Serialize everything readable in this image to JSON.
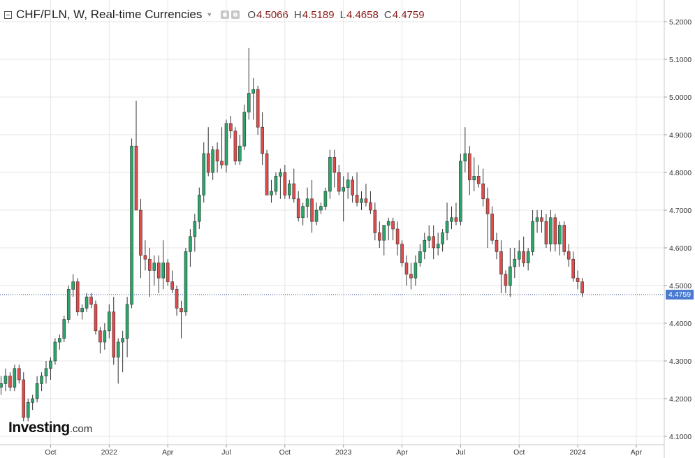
{
  "header": {
    "title": "CHF/PLN, W, Real-time Currencies",
    "ohlc": [
      {
        "key": "O",
        "value": "4.5066"
      },
      {
        "key": "H",
        "value": "4.5189"
      },
      {
        "key": "L",
        "value": "4.4658"
      },
      {
        "key": "C",
        "value": "4.4759"
      }
    ]
  },
  "logo": {
    "brand": "Investing",
    "suffix": ".com"
  },
  "last_price_label": "4.4759",
  "colors": {
    "up": "#2aa66a",
    "down": "#e04b4b",
    "grid": "#e6e6e6",
    "price_line": "#2c4a8c",
    "price_tag": "#4a7bd0"
  },
  "chart_data": {
    "type": "candlestick",
    "title": "CHF/PLN, W, Real-time Currencies",
    "interval": "W",
    "y_ticks": [
      "4.1000",
      "4.2000",
      "4.3000",
      "4.4000",
      "4.5000",
      "4.6000",
      "4.7000",
      "4.8000",
      "4.9000",
      "5.0000",
      "5.1000",
      "5.2000"
    ],
    "ylim": [
      4.08,
      5.24
    ],
    "x_ticks": [
      {
        "label": "Oct",
        "index": 11
      },
      {
        "label": "2022",
        "index": 24
      },
      {
        "label": "Apr",
        "index": 37
      },
      {
        "label": "Jul",
        "index": 50
      },
      {
        "label": "Oct",
        "index": 63
      },
      {
        "label": "2023",
        "index": 76
      },
      {
        "label": "Apr",
        "index": 89
      },
      {
        "label": "Jul",
        "index": 102
      },
      {
        "label": "Oct",
        "index": 115
      },
      {
        "label": "2024",
        "index": 128
      },
      {
        "label": "Apr",
        "index": 141
      }
    ],
    "last_price": 4.4759,
    "candles": [
      [
        4.23,
        4.26,
        4.21,
        4.24
      ],
      [
        4.24,
        4.28,
        4.22,
        4.26
      ],
      [
        4.26,
        4.27,
        4.22,
        4.23
      ],
      [
        4.23,
        4.29,
        4.22,
        4.28
      ],
      [
        4.28,
        4.29,
        4.24,
        4.25
      ],
      [
        4.25,
        4.27,
        4.14,
        4.15
      ],
      [
        4.15,
        4.2,
        4.14,
        4.19
      ],
      [
        4.19,
        4.21,
        4.17,
        4.2
      ],
      [
        4.2,
        4.26,
        4.19,
        4.24
      ],
      [
        4.24,
        4.27,
        4.22,
        4.26
      ],
      [
        4.26,
        4.3,
        4.24,
        4.28
      ],
      [
        4.28,
        4.31,
        4.25,
        4.3
      ],
      [
        4.3,
        4.36,
        4.29,
        4.35
      ],
      [
        4.35,
        4.37,
        4.33,
        4.36
      ],
      [
        4.36,
        4.42,
        4.35,
        4.41
      ],
      [
        4.41,
        4.5,
        4.4,
        4.49
      ],
      [
        4.49,
        4.53,
        4.47,
        4.51
      ],
      [
        4.51,
        4.52,
        4.42,
        4.43
      ],
      [
        4.43,
        4.45,
        4.41,
        4.44
      ],
      [
        4.44,
        4.48,
        4.43,
        4.47
      ],
      [
        4.47,
        4.48,
        4.44,
        4.45
      ],
      [
        4.45,
        4.46,
        4.37,
        4.38
      ],
      [
        4.38,
        4.39,
        4.32,
        4.35
      ],
      [
        4.35,
        4.4,
        4.33,
        4.38
      ],
      [
        4.38,
        4.45,
        4.36,
        4.43
      ],
      [
        4.43,
        4.47,
        4.29,
        4.31
      ],
      [
        4.31,
        4.36,
        4.24,
        4.35
      ],
      [
        4.35,
        4.38,
        4.27,
        4.36
      ],
      [
        4.36,
        4.47,
        4.31,
        4.45
      ],
      [
        4.45,
        4.89,
        4.44,
        4.87
      ],
      [
        4.87,
        4.99,
        4.71,
        4.7
      ],
      [
        4.7,
        4.73,
        4.52,
        4.58
      ],
      [
        4.58,
        4.62,
        4.54,
        4.57
      ],
      [
        4.57,
        4.6,
        4.47,
        4.54
      ],
      [
        4.54,
        4.58,
        4.5,
        4.56
      ],
      [
        4.56,
        4.58,
        4.48,
        4.52
      ],
      [
        4.52,
        4.62,
        4.49,
        4.56
      ],
      [
        4.56,
        4.57,
        4.5,
        4.51
      ],
      [
        4.51,
        4.54,
        4.48,
        4.49
      ],
      [
        4.49,
        4.5,
        4.42,
        4.44
      ],
      [
        4.44,
        4.46,
        4.36,
        4.43
      ],
      [
        4.43,
        4.6,
        4.42,
        4.59
      ],
      [
        4.59,
        4.65,
        4.55,
        4.63
      ],
      [
        4.63,
        4.69,
        4.59,
        4.67
      ],
      [
        4.67,
        4.76,
        4.65,
        4.74
      ],
      [
        4.74,
        4.88,
        4.72,
        4.85
      ],
      [
        4.85,
        4.92,
        4.79,
        4.8
      ],
      [
        4.8,
        4.87,
        4.78,
        4.86
      ],
      [
        4.86,
        4.88,
        4.8,
        4.83
      ],
      [
        4.83,
        4.92,
        4.81,
        4.82
      ],
      [
        4.82,
        4.94,
        4.8,
        4.93
      ],
      [
        4.93,
        4.95,
        4.89,
        4.91
      ],
      [
        4.91,
        4.92,
        4.82,
        4.83
      ],
      [
        4.83,
        4.9,
        4.82,
        4.87
      ],
      [
        4.87,
        4.98,
        4.86,
        4.96
      ],
      [
        4.96,
        5.13,
        4.94,
        5.01
      ],
      [
        5.01,
        5.05,
        4.94,
        5.02
      ],
      [
        5.02,
        5.03,
        4.9,
        4.92
      ],
      [
        4.92,
        4.96,
        4.82,
        4.85
      ],
      [
        4.85,
        4.86,
        4.75,
        4.74
      ],
      [
        4.74,
        4.78,
        4.72,
        4.75
      ],
      [
        4.75,
        4.8,
        4.74,
        4.79
      ],
      [
        4.79,
        4.81,
        4.73,
        4.8
      ],
      [
        4.8,
        4.82,
        4.73,
        4.74
      ],
      [
        4.74,
        4.78,
        4.73,
        4.77
      ],
      [
        4.77,
        4.81,
        4.72,
        4.73
      ],
      [
        4.73,
        4.75,
        4.67,
        4.68
      ],
      [
        4.68,
        4.72,
        4.66,
        4.71
      ],
      [
        4.71,
        4.76,
        4.68,
        4.73
      ],
      [
        4.73,
        4.78,
        4.64,
        4.67
      ],
      [
        4.67,
        4.72,
        4.66,
        4.7
      ],
      [
        4.7,
        4.72,
        4.69,
        4.71
      ],
      [
        4.71,
        4.76,
        4.7,
        4.75
      ],
      [
        4.75,
        4.86,
        4.73,
        4.84
      ],
      [
        4.84,
        4.86,
        4.76,
        4.8
      ],
      [
        4.8,
        4.82,
        4.74,
        4.75
      ],
      [
        4.75,
        4.79,
        4.67,
        4.76
      ],
      [
        4.76,
        4.8,
        4.73,
        4.78
      ],
      [
        4.78,
        4.79,
        4.72,
        4.74
      ],
      [
        4.74,
        4.8,
        4.71,
        4.72
      ],
      [
        4.72,
        4.75,
        4.7,
        4.73
      ],
      [
        4.73,
        4.77,
        4.71,
        4.72
      ],
      [
        4.72,
        4.75,
        4.69,
        4.7
      ],
      [
        4.7,
        4.72,
        4.62,
        4.64
      ],
      [
        4.64,
        4.67,
        4.6,
        4.62
      ],
      [
        4.62,
        4.65,
        4.58,
        4.66
      ],
      [
        4.66,
        4.68,
        4.62,
        4.67
      ],
      [
        4.67,
        4.68,
        4.62,
        4.65
      ],
      [
        4.65,
        4.67,
        4.58,
        4.61
      ],
      [
        4.61,
        4.62,
        4.55,
        4.56
      ],
      [
        4.56,
        4.58,
        4.5,
        4.53
      ],
      [
        4.53,
        4.56,
        4.49,
        4.52
      ],
      [
        4.52,
        4.58,
        4.5,
        4.56
      ],
      [
        4.56,
        4.61,
        4.55,
        4.59
      ],
      [
        4.59,
        4.64,
        4.57,
        4.62
      ],
      [
        4.62,
        4.66,
        4.6,
        4.63
      ],
      [
        4.63,
        4.66,
        4.57,
        4.6
      ],
      [
        4.6,
        4.64,
        4.58,
        4.61
      ],
      [
        4.61,
        4.65,
        4.59,
        4.64
      ],
      [
        4.64,
        4.72,
        4.62,
        4.67
      ],
      [
        4.67,
        4.71,
        4.65,
        4.68
      ],
      [
        4.68,
        4.72,
        4.66,
        4.67
      ],
      [
        4.67,
        4.85,
        4.66,
        4.83
      ],
      [
        4.83,
        4.92,
        4.8,
        4.85
      ],
      [
        4.85,
        4.87,
        4.74,
        4.78
      ],
      [
        4.78,
        4.84,
        4.75,
        4.79
      ],
      [
        4.79,
        4.82,
        4.76,
        4.77
      ],
      [
        4.77,
        4.81,
        4.71,
        4.73
      ],
      [
        4.73,
        4.76,
        4.6,
        4.69
      ],
      [
        4.69,
        4.71,
        4.61,
        4.62
      ],
      [
        4.62,
        4.64,
        4.57,
        4.59
      ],
      [
        4.59,
        4.62,
        4.48,
        4.53
      ],
      [
        4.53,
        4.54,
        4.48,
        4.5
      ],
      [
        4.5,
        4.6,
        4.47,
        4.55
      ],
      [
        4.55,
        4.6,
        4.52,
        4.57
      ],
      [
        4.57,
        4.62,
        4.55,
        4.59
      ],
      [
        4.59,
        4.63,
        4.55,
        4.56
      ],
      [
        4.56,
        4.6,
        4.54,
        4.59
      ],
      [
        4.59,
        4.7,
        4.58,
        4.67
      ],
      [
        4.67,
        4.7,
        4.64,
        4.68
      ],
      [
        4.68,
        4.7,
        4.64,
        4.67
      ],
      [
        4.67,
        4.69,
        4.6,
        4.61
      ],
      [
        4.61,
        4.7,
        4.59,
        4.68
      ],
      [
        4.68,
        4.69,
        4.59,
        4.61
      ],
      [
        4.61,
        4.67,
        4.58,
        4.66
      ],
      [
        4.66,
        4.67,
        4.58,
        4.59
      ],
      [
        4.59,
        4.61,
        4.55,
        4.57
      ],
      [
        4.57,
        4.59,
        4.51,
        4.52
      ],
      [
        4.52,
        4.54,
        4.49,
        4.51
      ],
      [
        4.51,
        4.52,
        4.47,
        4.48
      ]
    ]
  }
}
